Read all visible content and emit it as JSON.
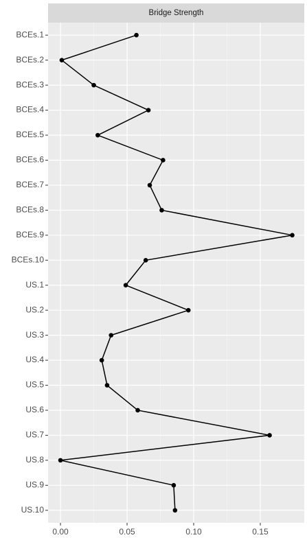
{
  "chart_data": {
    "type": "line",
    "title": "Bridge Strength",
    "categories": [
      "BCEs.1",
      "BCEs.2",
      "BCEs.3",
      "BCEs.4",
      "BCEs.5",
      "BCEs.6",
      "BCEs.7",
      "BCEs.8",
      "BCEs.9",
      "BCEs.10",
      "US.1",
      "US.2",
      "US.3",
      "US.4",
      "US.5",
      "US.6",
      "US.7",
      "US.8",
      "US.9",
      "US.10"
    ],
    "values": [
      0.057,
      0.001,
      0.025,
      0.066,
      0.028,
      0.077,
      0.067,
      0.076,
      0.174,
      0.064,
      0.049,
      0.096,
      0.038,
      0.031,
      0.035,
      0.058,
      0.157,
      0.0,
      0.085,
      0.086
    ],
    "color": "#000000",
    "xlim": [
      -0.0093,
      0.183
    ],
    "xticks": [
      {
        "value": 0,
        "label": "0.00"
      },
      0.05,
      {
        "value": 0.1,
        "label": "0.10"
      },
      0.15
    ],
    "grid": true
  }
}
